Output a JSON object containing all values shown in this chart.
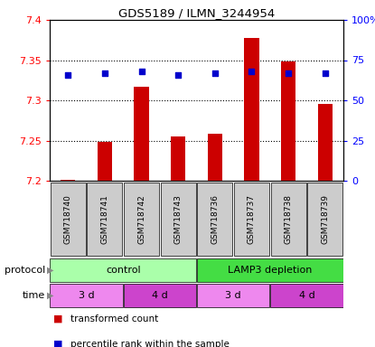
{
  "title": "GDS5189 / ILMN_3244954",
  "samples": [
    "GSM718740",
    "GSM718741",
    "GSM718742",
    "GSM718743",
    "GSM718736",
    "GSM718737",
    "GSM718738",
    "GSM718739"
  ],
  "bar_values": [
    7.201,
    7.248,
    7.317,
    7.255,
    7.258,
    7.378,
    7.348,
    7.295
  ],
  "bar_bottom": 7.2,
  "percentile_values": [
    66,
    67,
    68,
    66,
    67,
    68,
    67,
    67
  ],
  "ylim_left": [
    7.2,
    7.4
  ],
  "ylim_right": [
    0,
    100
  ],
  "yticks_left": [
    7.2,
    7.25,
    7.3,
    7.35,
    7.4
  ],
  "yticks_right": [
    0,
    25,
    50,
    75,
    100
  ],
  "ytick_labels_right": [
    "0",
    "25",
    "50",
    "75",
    "100%"
  ],
  "bar_color": "#cc0000",
  "dot_color": "#0000cc",
  "protocol_groups": [
    {
      "label": "control",
      "start": 0,
      "end": 4,
      "color": "#aaffaa"
    },
    {
      "label": "LAMP3 depletion",
      "start": 4,
      "end": 8,
      "color": "#44dd44"
    }
  ],
  "time_groups": [
    {
      "label": "3 d",
      "start": 0,
      "end": 2,
      "color": "#ee88ee"
    },
    {
      "label": "4 d",
      "start": 2,
      "end": 4,
      "color": "#cc44cc"
    },
    {
      "label": "3 d",
      "start": 4,
      "end": 6,
      "color": "#ee88ee"
    },
    {
      "label": "4 d",
      "start": 6,
      "end": 8,
      "color": "#cc44cc"
    }
  ],
  "legend_items": [
    {
      "label": "transformed count",
      "color": "#cc0000"
    },
    {
      "label": "percentile rank within the sample",
      "color": "#0000cc"
    }
  ],
  "sample_box_color": "#cccccc",
  "dotted_ticks": [
    7.25,
    7.3,
    7.35
  ]
}
